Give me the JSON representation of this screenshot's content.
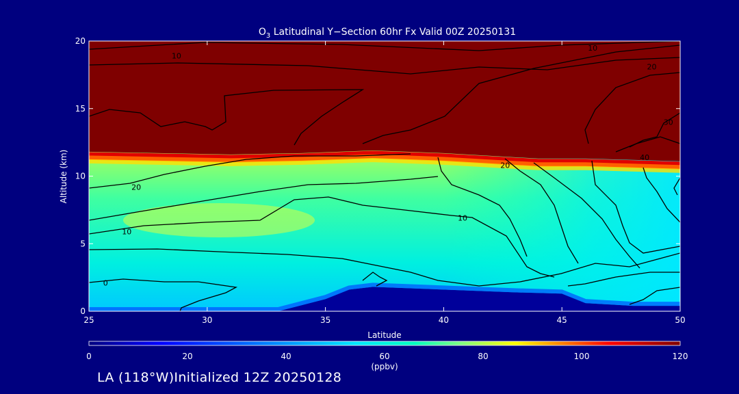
{
  "chart_data": {
    "type": "contour",
    "title": "O3 Latitudinal Y−Section 60hr  Fx Valid 00Z 20250131",
    "title_parts": {
      "pre": "O",
      "sub": "3",
      "post": " Latitudinal Y−Section 60hr  Fx Valid 00Z 20250131"
    },
    "xlabel": "Latitude",
    "ylabel": "Altitude (km)",
    "xlim": [
      25,
      50
    ],
    "ylim": [
      0,
      20
    ],
    "xticks": [
      25,
      30,
      35,
      40,
      45,
      50
    ],
    "yticks": [
      0,
      5,
      10,
      15,
      20
    ],
    "colorbar": {
      "ticks": [
        0,
        20,
        40,
        60,
        80,
        100,
        120
      ],
      "range": [
        0,
        120
      ],
      "unit": "(ppbv)",
      "colors": [
        "#00007f",
        "#0000ff",
        "#0080ff",
        "#00e5ff",
        "#00ffc0",
        "#80ff80",
        "#ffff00",
        "#ff8000",
        "#ff0000",
        "#7f0000"
      ]
    },
    "stratosphere_base_km": [
      [
        25,
        11.8
      ],
      [
        28,
        11.7
      ],
      [
        31,
        11.6
      ],
      [
        34,
        11.7
      ],
      [
        37,
        11.9
      ],
      [
        40,
        11.7
      ],
      [
        42,
        11.5
      ],
      [
        44,
        11.3
      ],
      [
        46,
        11.3
      ],
      [
        48,
        11.2
      ],
      [
        50,
        11.1
      ]
    ],
    "terrain_km": [
      [
        25,
        0
      ],
      [
        33,
        0
      ],
      [
        35,
        0.9
      ],
      [
        36,
        1.6
      ],
      [
        37,
        1.8
      ],
      [
        40,
        1.6
      ],
      [
        43,
        1.4
      ],
      [
        45,
        1.3
      ],
      [
        46,
        0.6
      ],
      [
        48,
        0.4
      ],
      [
        50,
        0.4
      ]
    ],
    "contour_labels": [
      {
        "text": "10",
        "lat": 28.7,
        "alt": 18.9
      },
      {
        "text": "10",
        "lat": 46.3,
        "alt": 19.5
      },
      {
        "text": "20",
        "lat": 48.8,
        "alt": 18.1
      },
      {
        "text": "30",
        "lat": 49.5,
        "alt": 14.0
      },
      {
        "text": "40",
        "lat": 48.5,
        "alt": 11.4
      },
      {
        "text": "20",
        "lat": 42.6,
        "alt": 10.8
      },
      {
        "text": "20",
        "lat": 27.0,
        "alt": 9.2
      },
      {
        "text": "10",
        "lat": 26.6,
        "alt": 5.9
      },
      {
        "text": "10",
        "lat": 40.8,
        "alt": 6.9
      },
      {
        "text": "0",
        "lat": 25.7,
        "alt": 2.1
      }
    ]
  },
  "footer_text": "LA (118°W)Initialized 12Z 20250128"
}
